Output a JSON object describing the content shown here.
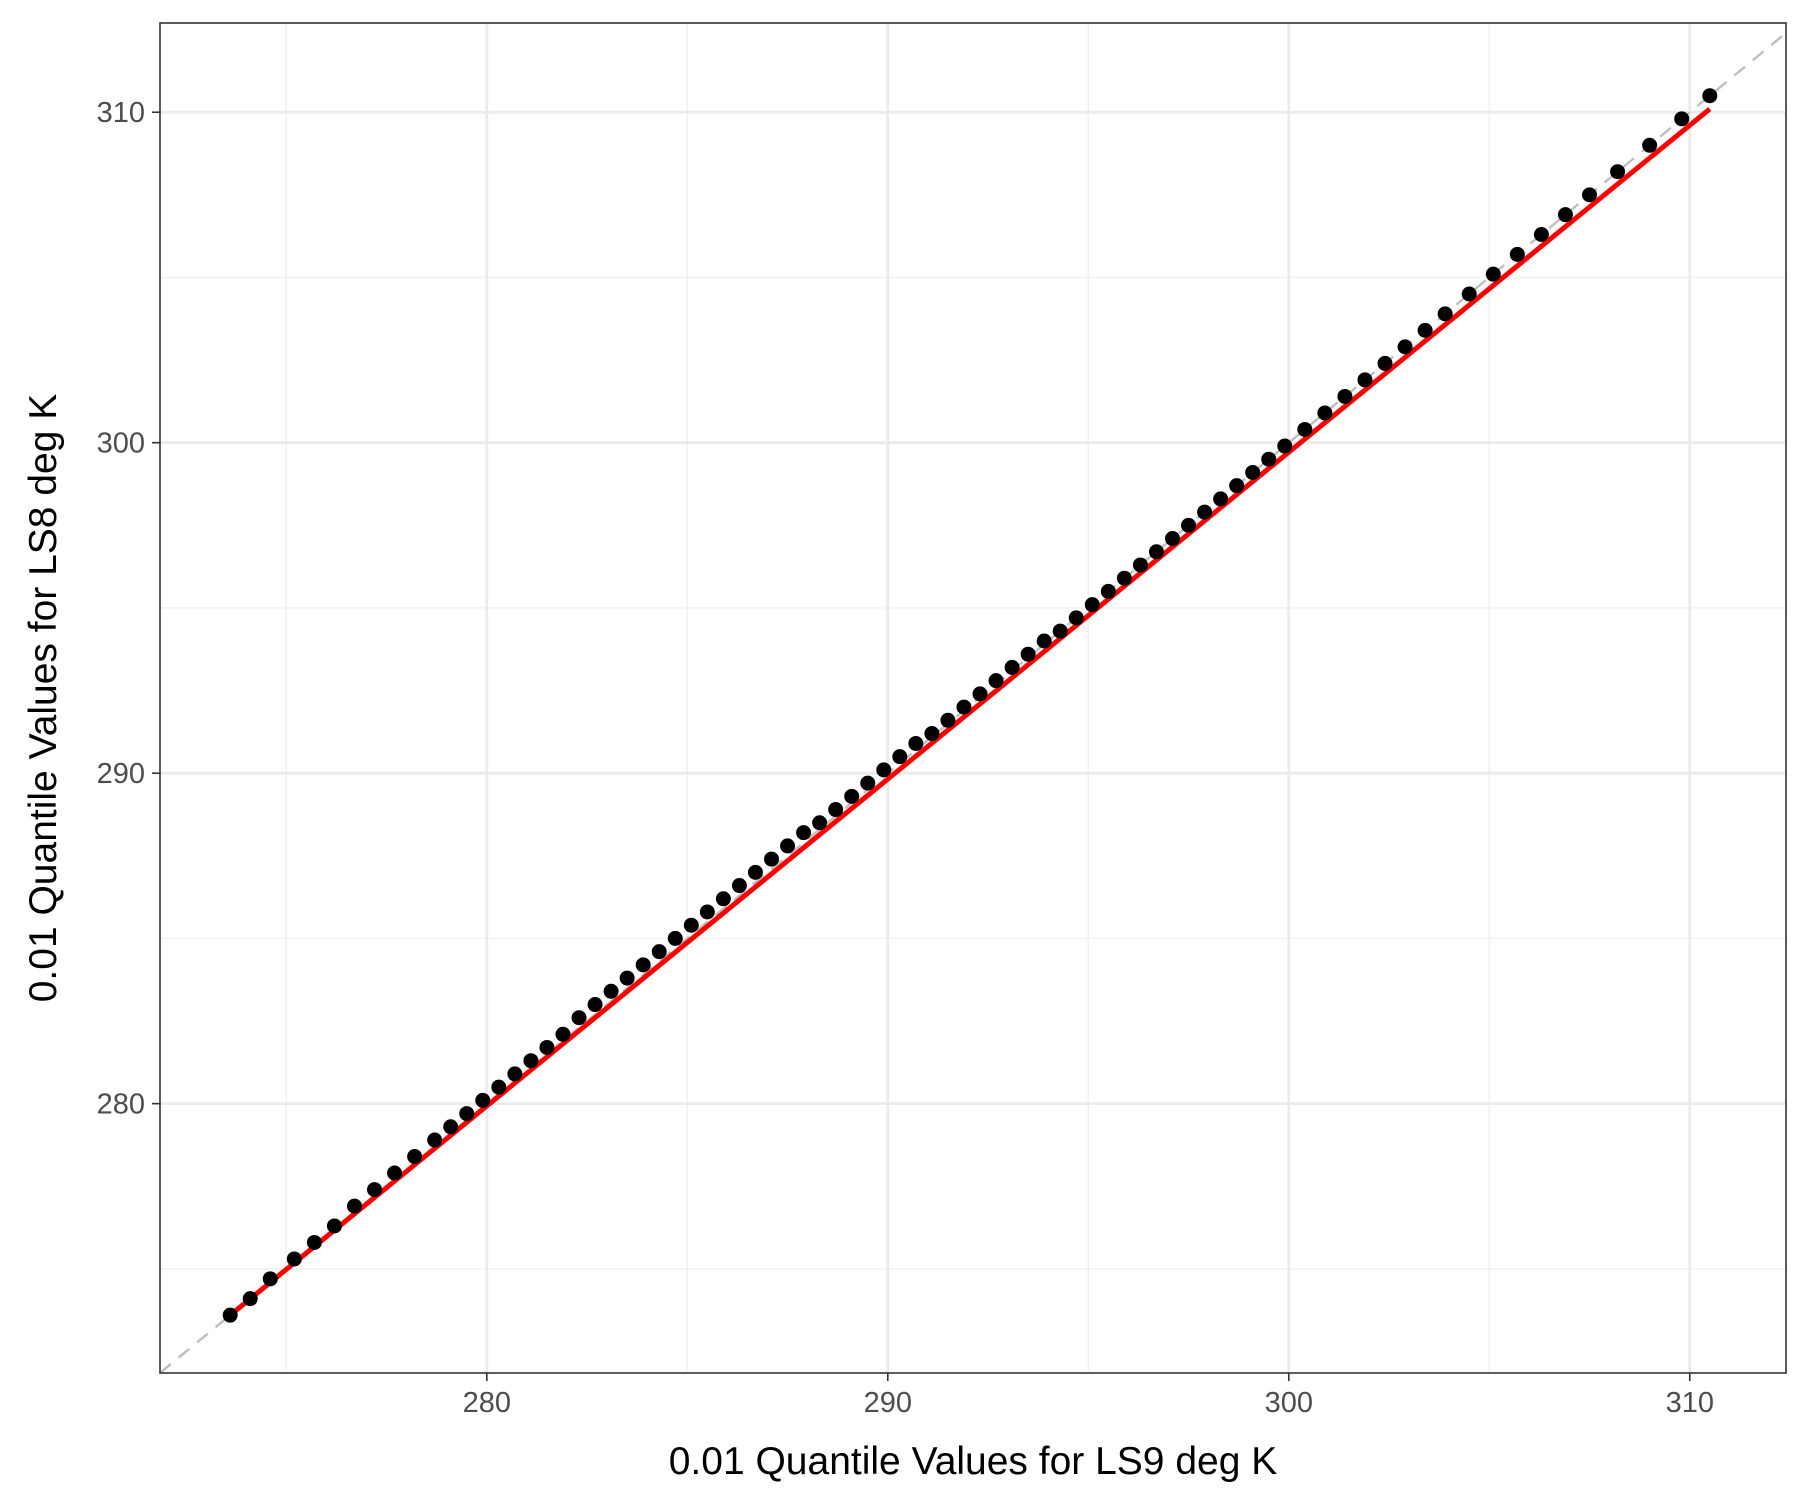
{
  "chart_data": {
    "type": "scatter",
    "title": "",
    "xlabel": "0.01 Quantile Values for LS9 deg K",
    "ylabel": "0.01 Quantile Values for LS8 deg K",
    "xlim": [
      271.85,
      312.4
    ],
    "ylim": [
      271.85,
      312.7
    ],
    "xticks": [
      280,
      290,
      300,
      310
    ],
    "yticks": [
      280,
      290,
      300,
      310
    ],
    "grid": true,
    "legend": "none",
    "series": [
      {
        "type": "scatter",
        "color": "#000000",
        "x": [
          273.6,
          274.1,
          274.6,
          275.2,
          275.7,
          276.2,
          276.7,
          277.2,
          277.7,
          278.2,
          278.7,
          279.1,
          279.5,
          279.9,
          280.3,
          280.7,
          281.1,
          281.5,
          281.9,
          282.3,
          282.7,
          283.1,
          283.5,
          283.9,
          284.3,
          284.7,
          285.1,
          285.5,
          285.9,
          286.3,
          286.7,
          287.1,
          287.5,
          287.9,
          288.3,
          288.7,
          289.1,
          289.5,
          289.9,
          290.3,
          290.7,
          291.1,
          291.5,
          291.9,
          292.3,
          292.7,
          293.1,
          293.5,
          293.9,
          294.3,
          294.7,
          295.1,
          295.5,
          295.9,
          296.3,
          296.7,
          297.1,
          297.5,
          297.9,
          298.3,
          298.7,
          299.1,
          299.5,
          299.9,
          300.4,
          300.9,
          301.4,
          301.9,
          302.4,
          302.9,
          303.4,
          303.9,
          304.5,
          305.1,
          305.7,
          306.3,
          306.9,
          307.5,
          308.2,
          309.0,
          309.8,
          310.5
        ],
        "y": [
          273.6,
          274.1,
          274.7,
          275.3,
          275.8,
          276.3,
          276.9,
          277.4,
          277.9,
          278.4,
          278.9,
          279.3,
          279.7,
          280.1,
          280.5,
          280.9,
          281.3,
          281.7,
          282.1,
          282.6,
          283.0,
          283.4,
          283.8,
          284.2,
          284.6,
          285.0,
          285.4,
          285.8,
          286.2,
          286.6,
          287.0,
          287.4,
          287.8,
          288.2,
          288.5,
          288.9,
          289.3,
          289.7,
          290.1,
          290.5,
          290.9,
          291.2,
          291.6,
          292.0,
          292.4,
          292.8,
          293.2,
          293.6,
          294.0,
          294.3,
          294.7,
          295.1,
          295.5,
          295.9,
          296.3,
          296.7,
          297.1,
          297.5,
          297.9,
          298.3,
          298.7,
          299.1,
          299.5,
          299.9,
          300.4,
          300.9,
          301.4,
          301.9,
          302.4,
          302.9,
          303.4,
          303.9,
          304.5,
          305.1,
          305.7,
          306.3,
          306.9,
          307.5,
          308.2,
          309.0,
          309.8,
          310.5
        ]
      },
      {
        "type": "line",
        "color": "#ff0000",
        "x": [
          273.6,
          310.5
        ],
        "y": [
          273.6,
          310.1
        ]
      },
      {
        "type": "line",
        "style": "dashed",
        "color": "#bfbfbf",
        "x": [
          271.85,
          312.4
        ],
        "y": [
          271.85,
          312.4
        ]
      }
    ]
  }
}
